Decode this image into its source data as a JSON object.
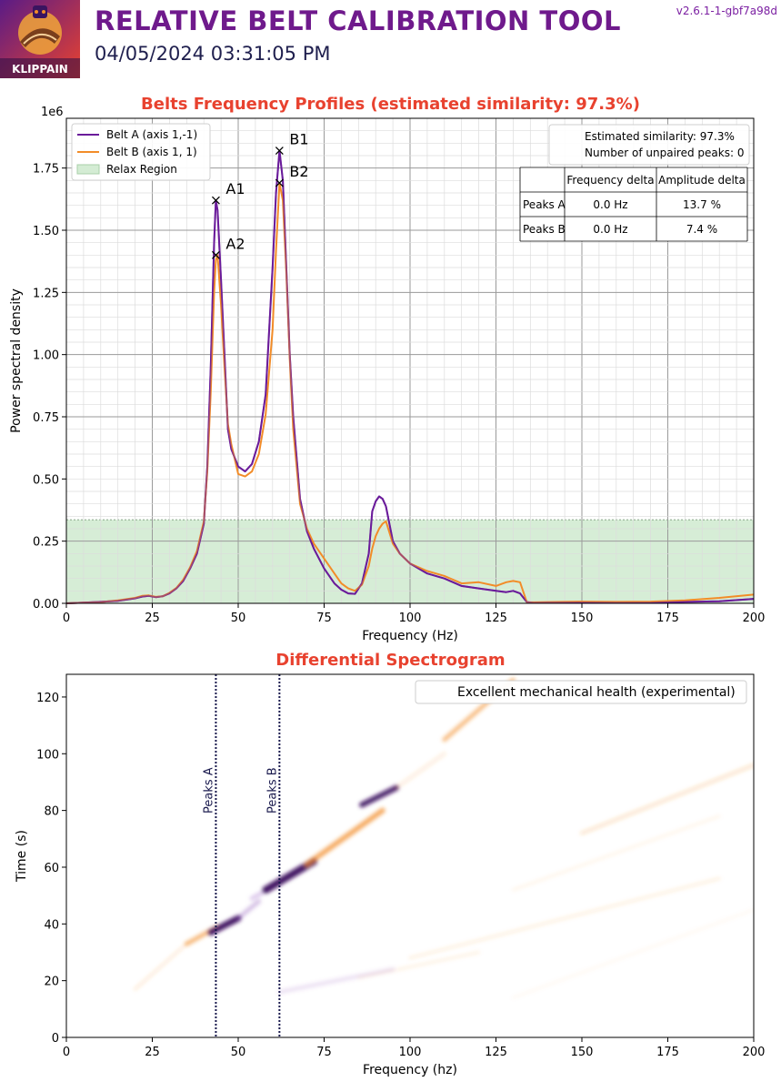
{
  "header": {
    "title": "RELATIVE BELT CALIBRATION TOOL",
    "date": "04/05/2024 03:31:05 PM",
    "version": "v2.6.1-1-gbf7a98d",
    "logo_text": "KLIPPAIN"
  },
  "colors": {
    "belt_a": "#6a1b9a",
    "belt_b": "#f28c28",
    "relax": "#d4ecd4",
    "title": "#6f1a8c",
    "plot_title": "#e8422f"
  },
  "chart_data": [
    {
      "type": "line",
      "title": "Belts Frequency Profiles (estimated similarity: 97.3%)",
      "xlabel": "Frequency (Hz)",
      "ylabel": "Power spectral density",
      "y_offset_label": "1e6",
      "xlim": [
        0,
        200
      ],
      "ylim": [
        0,
        1.95
      ],
      "xticks": [
        0,
        25,
        50,
        75,
        100,
        125,
        150,
        175,
        200
      ],
      "yticks": [
        0,
        0.25,
        0.5,
        0.75,
        1.0,
        1.25,
        1.5,
        1.75
      ],
      "ytick_labels": [
        "0.00",
        "0.25",
        "0.50",
        "0.75",
        "1.00",
        "1.25",
        "1.50",
        "1.75"
      ],
      "grid": true,
      "legend_position": "top-left",
      "legend": [
        "Belt A (axis 1,-1)",
        "Belt B (axis 1, 1)",
        "Relax Region"
      ],
      "relax_region_max": 0.336,
      "series": [
        {
          "name": "Belt A (axis 1,-1)",
          "x": [
            0,
            5,
            10,
            15,
            20,
            22,
            24,
            26,
            28,
            30,
            32,
            34,
            36,
            38,
            40,
            41,
            42,
            43,
            43.5,
            44,
            45,
            46,
            47,
            48,
            50,
            52,
            54,
            56,
            58,
            60,
            61,
            62,
            63,
            64,
            65,
            66,
            68,
            70,
            72,
            75,
            78,
            80,
            82,
            84,
            86,
            88,
            89,
            90,
            91,
            92,
            93,
            95,
            97,
            100,
            105,
            110,
            115,
            120,
            125,
            128,
            130,
            132,
            134,
            136,
            140,
            150,
            160,
            170,
            180,
            190,
            200
          ],
          "y": [
            0,
            0.003,
            0.006,
            0.01,
            0.02,
            0.027,
            0.03,
            0.025,
            0.028,
            0.04,
            0.06,
            0.09,
            0.14,
            0.2,
            0.32,
            0.55,
            0.95,
            1.45,
            1.62,
            1.58,
            1.3,
            1.0,
            0.7,
            0.62,
            0.55,
            0.53,
            0.56,
            0.65,
            0.84,
            1.35,
            1.65,
            1.82,
            1.7,
            1.35,
            1.0,
            0.75,
            0.42,
            0.29,
            0.22,
            0.14,
            0.08,
            0.055,
            0.04,
            0.038,
            0.08,
            0.2,
            0.37,
            0.41,
            0.43,
            0.42,
            0.39,
            0.25,
            0.2,
            0.16,
            0.12,
            0.1,
            0.07,
            0.06,
            0.05,
            0.045,
            0.05,
            0.04,
            0.005,
            0.002,
            0.003,
            0.003,
            0.002,
            0.002,
            0.006,
            0.008,
            0.018
          ]
        },
        {
          "name": "Belt B (axis 1, 1)",
          "x": [
            0,
            5,
            10,
            15,
            20,
            22,
            24,
            26,
            28,
            30,
            32,
            34,
            36,
            38,
            40,
            41,
            42,
            43,
            43.5,
            44,
            45,
            46,
            47,
            48,
            50,
            52,
            54,
            56,
            58,
            60,
            61,
            62,
            63,
            64,
            65,
            66,
            68,
            70,
            72,
            75,
            78,
            80,
            82,
            84,
            86,
            88,
            89,
            90,
            91,
            92,
            93,
            95,
            97,
            100,
            105,
            110,
            115,
            120,
            125,
            128,
            130,
            132,
            134,
            136,
            140,
            150,
            160,
            170,
            180,
            190,
            200
          ],
          "y": [
            0,
            0.003,
            0.005,
            0.012,
            0.022,
            0.03,
            0.032,
            0.026,
            0.028,
            0.042,
            0.062,
            0.095,
            0.145,
            0.21,
            0.33,
            0.53,
            0.85,
            1.25,
            1.38,
            1.4,
            1.2,
            0.95,
            0.72,
            0.64,
            0.52,
            0.51,
            0.53,
            0.6,
            0.76,
            1.1,
            1.42,
            1.69,
            1.62,
            1.33,
            0.98,
            0.7,
            0.4,
            0.3,
            0.24,
            0.18,
            0.12,
            0.08,
            0.06,
            0.05,
            0.075,
            0.15,
            0.22,
            0.27,
            0.3,
            0.32,
            0.33,
            0.24,
            0.2,
            0.16,
            0.13,
            0.11,
            0.08,
            0.085,
            0.07,
            0.085,
            0.09,
            0.085,
            0.004,
            0.004,
            0.005,
            0.007,
            0.006,
            0.007,
            0.012,
            0.022,
            0.035
          ]
        }
      ],
      "annotations": [
        {
          "label": "A1",
          "x": 43.5,
          "y": 1.62
        },
        {
          "label": "A2",
          "x": 43.5,
          "y": 1.4
        },
        {
          "label": "B1",
          "x": 62,
          "y": 1.82
        },
        {
          "label": "B2",
          "x": 62,
          "y": 1.69
        }
      ],
      "info_box": {
        "similarity": "Estimated similarity: 97.3%",
        "unpaired": "Number of unpaired peaks: 0"
      },
      "table": {
        "headers": [
          "",
          "Frequency delta",
          "Amplitude delta"
        ],
        "rows": [
          [
            "Peaks A",
            "0.0 Hz",
            "13.7 %"
          ],
          [
            "Peaks B",
            "0.0 Hz",
            "7.4 %"
          ]
        ]
      }
    },
    {
      "type": "heatmap",
      "title": "Differential Spectrogram",
      "xlabel": "Frequency (hz)",
      "ylabel": "Time (s)",
      "xlim": [
        0,
        200
      ],
      "ylim": [
        0,
        128
      ],
      "xticks": [
        0,
        25,
        50,
        75,
        100,
        125,
        150,
        175,
        200
      ],
      "yticks": [
        0,
        20,
        40,
        60,
        80,
        100,
        120
      ],
      "legend": "Excellent mechanical health (experimental)",
      "legend_position": "top-right",
      "peak_lines": [
        {
          "label": "Peaks A",
          "x": 43.5
        },
        {
          "label": "Peaks B",
          "x": 62
        }
      ],
      "streaks": [
        {
          "from": [
            20,
            17
          ],
          "to": [
            35,
            33
          ],
          "color": "#f28c28",
          "opacity": 0.18,
          "width": 3
        },
        {
          "from": [
            35,
            33
          ],
          "to": [
            44,
            39
          ],
          "color": "#f28c28",
          "opacity": 0.6,
          "width": 5
        },
        {
          "from": [
            42,
            37
          ],
          "to": [
            50,
            42
          ],
          "color": "#3b0a5e",
          "opacity": 0.95,
          "width": 7
        },
        {
          "from": [
            50,
            42
          ],
          "to": [
            56,
            48
          ],
          "color": "#8a4fb5",
          "opacity": 0.35,
          "width": 5
        },
        {
          "from": [
            54,
            49
          ],
          "to": [
            60,
            53
          ],
          "color": "#b98fd6",
          "opacity": 0.45,
          "width": 5
        },
        {
          "from": [
            58,
            52
          ],
          "to": [
            72,
            62
          ],
          "color": "#3b0a5e",
          "opacity": 0.95,
          "width": 8
        },
        {
          "from": [
            70,
            61
          ],
          "to": [
            92,
            80
          ],
          "color": "#f28c28",
          "opacity": 0.7,
          "width": 6
        },
        {
          "from": [
            86,
            82
          ],
          "to": [
            96,
            88
          ],
          "color": "#3b0a5e",
          "opacity": 0.9,
          "width": 6
        },
        {
          "from": [
            96,
            88
          ],
          "to": [
            110,
            100
          ],
          "color": "#f28c28",
          "opacity": 0.15,
          "width": 4
        },
        {
          "from": [
            110,
            105
          ],
          "to": [
            130,
            126
          ],
          "color": "#f28c28",
          "opacity": 0.55,
          "width": 5
        },
        {
          "from": [
            62,
            16
          ],
          "to": [
            95,
            24
          ],
          "color": "#8a4fb5",
          "opacity": 0.18,
          "width": 4
        },
        {
          "from": [
            85,
            21
          ],
          "to": [
            120,
            30
          ],
          "color": "#f28c28",
          "opacity": 0.12,
          "width": 3
        },
        {
          "from": [
            100,
            28
          ],
          "to": [
            190,
            56
          ],
          "color": "#f28c28",
          "opacity": 0.14,
          "width": 3
        },
        {
          "from": [
            130,
            52
          ],
          "to": [
            190,
            78
          ],
          "color": "#f28c28",
          "opacity": 0.09,
          "width": 3
        },
        {
          "from": [
            150,
            72
          ],
          "to": [
            200,
            96
          ],
          "color": "#f28c28",
          "opacity": 0.22,
          "width": 4
        },
        {
          "from": [
            130,
            14
          ],
          "to": [
            200,
            45
          ],
          "color": "#f28c28",
          "opacity": 0.05,
          "width": 3
        }
      ]
    }
  ]
}
